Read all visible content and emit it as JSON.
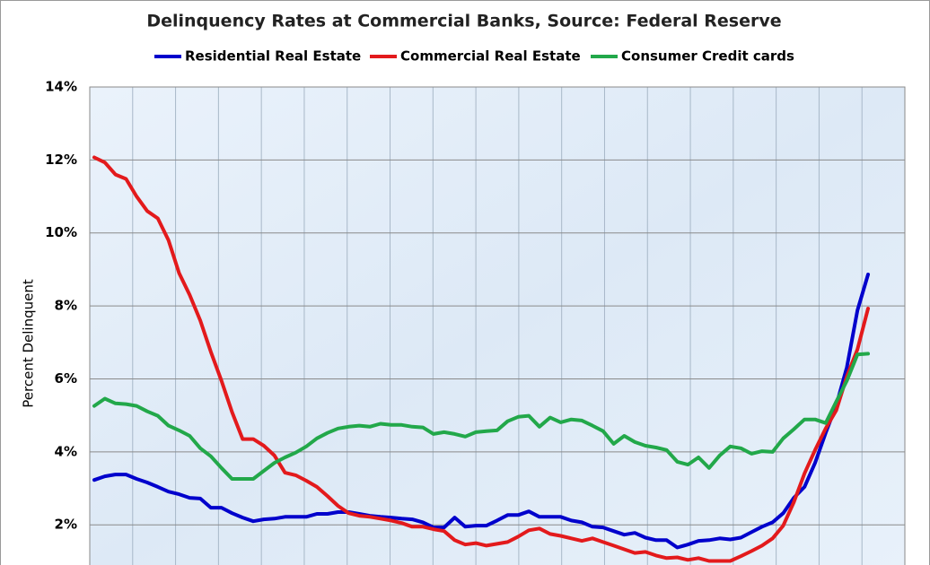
{
  "chart_data": {
    "type": "line",
    "title": "Delinquency Rates at Commercial Banks, Source: Federal Reserve",
    "y_label": "Percent Delinquent",
    "categories": [
      null,
      null,
      null,
      null,
      null,
      null,
      null,
      null,
      null,
      null,
      null,
      null,
      null,
      null,
      null,
      null,
      null,
      null,
      null,
      null,
      null,
      null,
      null,
      null,
      null,
      null,
      null,
      null,
      null,
      null,
      null,
      null,
      null,
      null,
      null,
      null,
      null,
      null,
      null,
      null,
      null,
      null,
      null,
      null,
      null,
      null,
      null,
      null,
      null,
      null,
      null,
      null,
      null,
      null,
      null,
      null,
      null,
      null,
      null,
      null,
      null,
      null,
      null,
      null,
      null,
      null,
      null,
      null,
      null,
      null,
      null,
      null,
      null,
      null
    ],
    "series": [
      {
        "name": "Residential Real Estate",
        "color": "#0000cc",
        "values": [
          3.23,
          3.33,
          3.38,
          3.38,
          3.26,
          3.16,
          3.04,
          2.91,
          2.84,
          2.74,
          2.72,
          2.47,
          2.47,
          2.32,
          2.2,
          2.1,
          2.15,
          2.17,
          2.22,
          2.22,
          2.22,
          2.3,
          2.3,
          2.35,
          2.35,
          2.3,
          2.25,
          2.22,
          2.2,
          2.17,
          2.15,
          2.07,
          1.93,
          1.93,
          2.2,
          1.95,
          1.98,
          1.98,
          2.12,
          2.27,
          2.27,
          2.37,
          2.22,
          2.22,
          2.22,
          2.12,
          2.07,
          1.95,
          1.93,
          1.83,
          1.73,
          1.78,
          1.65,
          1.58,
          1.58,
          1.38,
          1.46,
          1.56,
          1.58,
          1.63,
          1.6,
          1.65,
          1.8,
          1.95,
          2.07,
          2.32,
          2.74,
          3.04,
          3.7,
          4.52,
          5.28,
          6.32,
          7.88,
          8.86
        ]
      },
      {
        "name": "Commercial Real Estate",
        "color": "#e31a1c",
        "values": [
          12.07,
          11.93,
          11.6,
          11.48,
          11.0,
          10.6,
          10.4,
          9.8,
          8.9,
          8.3,
          7.6,
          6.74,
          5.95,
          5.09,
          4.35,
          4.35,
          4.17,
          3.9,
          3.43,
          3.36,
          3.21,
          3.04,
          2.79,
          2.52,
          2.32,
          2.25,
          2.22,
          2.17,
          2.12,
          2.05,
          1.95,
          1.95,
          1.88,
          1.83,
          1.58,
          1.46,
          1.5,
          1.43,
          1.48,
          1.53,
          1.68,
          1.85,
          1.9,
          1.75,
          1.7,
          1.63,
          1.56,
          1.63,
          1.53,
          1.43,
          1.33,
          1.23,
          1.26,
          1.16,
          1.09,
          1.11,
          1.04,
          1.09,
          1.01,
          1.01,
          1.01,
          1.14,
          1.28,
          1.43,
          1.63,
          1.98,
          2.62,
          3.41,
          4.05,
          4.64,
          5.14,
          6.07,
          6.81,
          7.93
        ]
      },
      {
        "name": "Consumer Credit cards",
        "color": "#22a84a",
        "values": [
          5.26,
          5.46,
          5.33,
          5.31,
          5.26,
          5.11,
          4.99,
          4.72,
          4.59,
          4.44,
          4.1,
          3.88,
          3.56,
          3.26,
          3.26,
          3.26,
          3.48,
          3.7,
          3.85,
          3.98,
          4.15,
          4.37,
          4.52,
          4.64,
          4.69,
          4.72,
          4.69,
          4.77,
          4.74,
          4.74,
          4.69,
          4.67,
          4.49,
          4.54,
          4.49,
          4.42,
          4.54,
          4.57,
          4.59,
          4.84,
          4.96,
          4.99,
          4.69,
          4.94,
          4.81,
          4.89,
          4.86,
          4.72,
          4.57,
          4.22,
          4.44,
          4.27,
          4.17,
          4.12,
          4.05,
          3.73,
          3.65,
          3.85,
          3.56,
          3.9,
          4.15,
          4.1,
          3.95,
          4.02,
          4.0,
          4.37,
          4.62,
          4.89,
          4.89,
          4.79,
          5.38,
          5.95,
          6.67,
          6.69
        ]
      }
    ],
    "ylim": [
      0.9,
      14
    ],
    "yticks": [
      {
        "value": 2,
        "label": "2%"
      },
      {
        "value": 4,
        "label": "4%"
      },
      {
        "value": 6,
        "label": "6%"
      },
      {
        "value": 8,
        "label": "8%"
      },
      {
        "value": 10,
        "label": "10%"
      },
      {
        "value": 12,
        "label": "12%"
      },
      {
        "value": 14,
        "label": "14%"
      }
    ],
    "grid": true
  }
}
